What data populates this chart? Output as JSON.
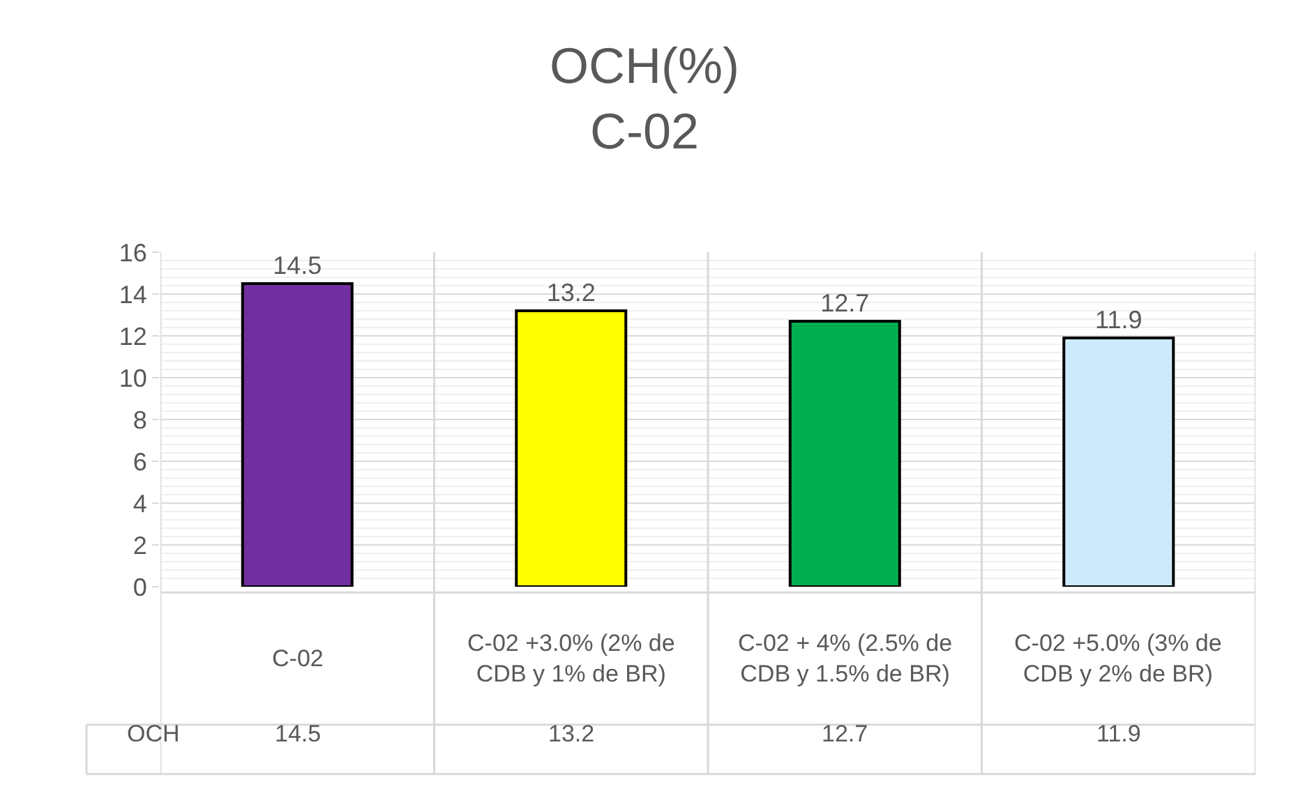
{
  "chart_data": {
    "type": "bar",
    "title": "OCH(%)",
    "subtitle": "C-02",
    "categories": [
      "C-02",
      "C-02 +3.0% (2% de CDB y 1% de BR)",
      "C-02 + 4% (2.5% de CDB y 1.5% de BR)",
      "C-02 +5.0% (3% de CDB y 2% de BR)"
    ],
    "series": [
      {
        "name": "OCH",
        "values": [
          14.5,
          13.2,
          12.7,
          11.9
        ],
        "colors": [
          "#7030a0",
          "#ffff00",
          "#00b050",
          "#cdeafd"
        ],
        "value_labels": [
          "14.5",
          "13.2",
          "12.7",
          "11.9"
        ]
      }
    ],
    "ylim": [
      0,
      16
    ],
    "yticks": [
      0,
      2,
      4,
      6,
      8,
      10,
      12,
      14,
      16
    ],
    "grid": "y",
    "data_labels": true,
    "legend": "bottom",
    "annotations": [
      "14.5",
      "13.2",
      "12.7",
      "11.9"
    ]
  }
}
